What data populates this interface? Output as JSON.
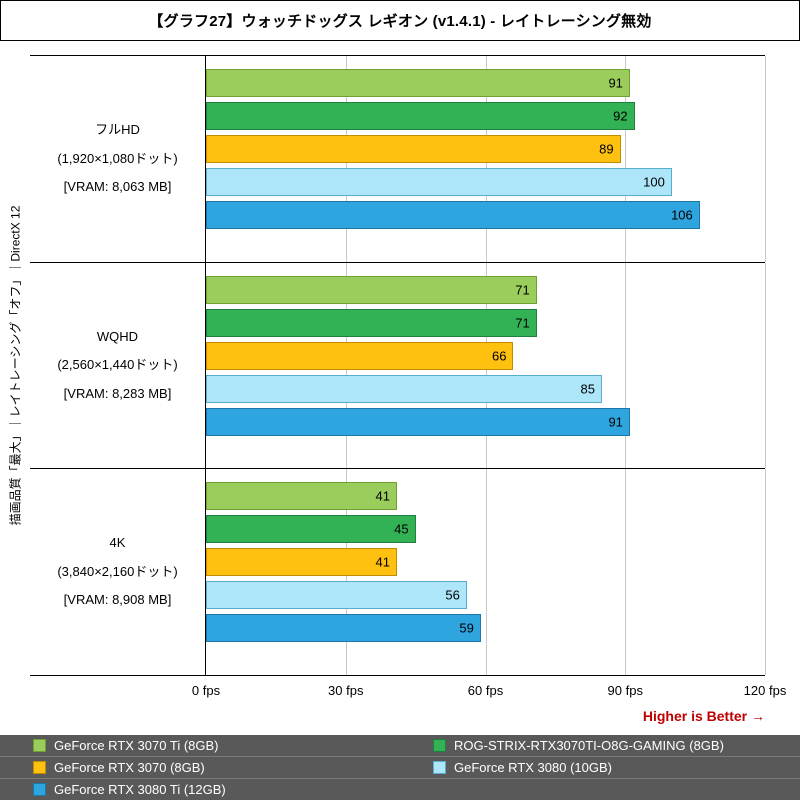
{
  "title": "【グラフ27】ウォッチドッグス レギオン (v1.4.1) - レイトレーシング無効",
  "y_axis_label": "描画品質「最大」｜レイトレーシング「オフ」｜DirectX 12",
  "footer_note": "Higher is Better →",
  "footer_note_color": "#c00000",
  "chart_data": {
    "type": "bar",
    "orientation": "horizontal",
    "title": "【グラフ27】ウォッチドッグス レギオン (v1.4.1) - レイトレーシング無効",
    "xlabel": "fps",
    "xlim": [
      0,
      120
    ],
    "x_ticks": [
      {
        "value": 0,
        "label": "0 fps"
      },
      {
        "value": 30,
        "label": "30 fps"
      },
      {
        "value": 60,
        "label": "60 fps"
      },
      {
        "value": 90,
        "label": "90 fps"
      },
      {
        "value": 120,
        "label": "120 fps"
      }
    ],
    "grid": true,
    "legend_position": "bottom",
    "categories": [
      {
        "name": "フルHD",
        "lines": [
          "フルHD",
          "(1,920×1,080ドット)",
          "[VRAM: 8,063 MB]"
        ]
      },
      {
        "name": "WQHD",
        "lines": [
          "WQHD",
          "(2,560×1,440ドット)",
          "[VRAM: 8,283 MB]"
        ]
      },
      {
        "name": "4K",
        "lines": [
          "4K",
          "(3,840×2,160ドット)",
          "[VRAM: 8,908 MB]"
        ]
      }
    ],
    "series": [
      {
        "name": "GeForce RTX 3070 Ti (8GB)",
        "color": "#9acd5b",
        "border_color": "#70a02f",
        "values": [
          91,
          71,
          41
        ]
      },
      {
        "name": "ROG-STRIX-RTX3070TI-O8G-GAMING (8GB)",
        "color": "#33b155",
        "border_color": "#1f8040",
        "values": [
          92,
          71,
          45
        ]
      },
      {
        "name": "GeForce RTX 3070 (8GB)",
        "color": "#ffc110",
        "border_color": "#c08c00",
        "values": [
          89,
          66,
          41
        ]
      },
      {
        "name": "GeForce RTX 3080 (10GB)",
        "color": "#ace6f8",
        "border_color": "#59accb",
        "values": [
          100,
          85,
          56
        ]
      },
      {
        "name": "GeForce RTX 3080 Ti (12GB)",
        "color": "#2fa5e0",
        "border_color": "#1b78a8",
        "values": [
          106,
          91,
          59
        ]
      }
    ]
  },
  "legend": {
    "background": "#595959",
    "text_color": "#ffffff",
    "rows": [
      [
        0,
        1
      ],
      [
        2,
        3
      ],
      [
        4
      ]
    ]
  }
}
